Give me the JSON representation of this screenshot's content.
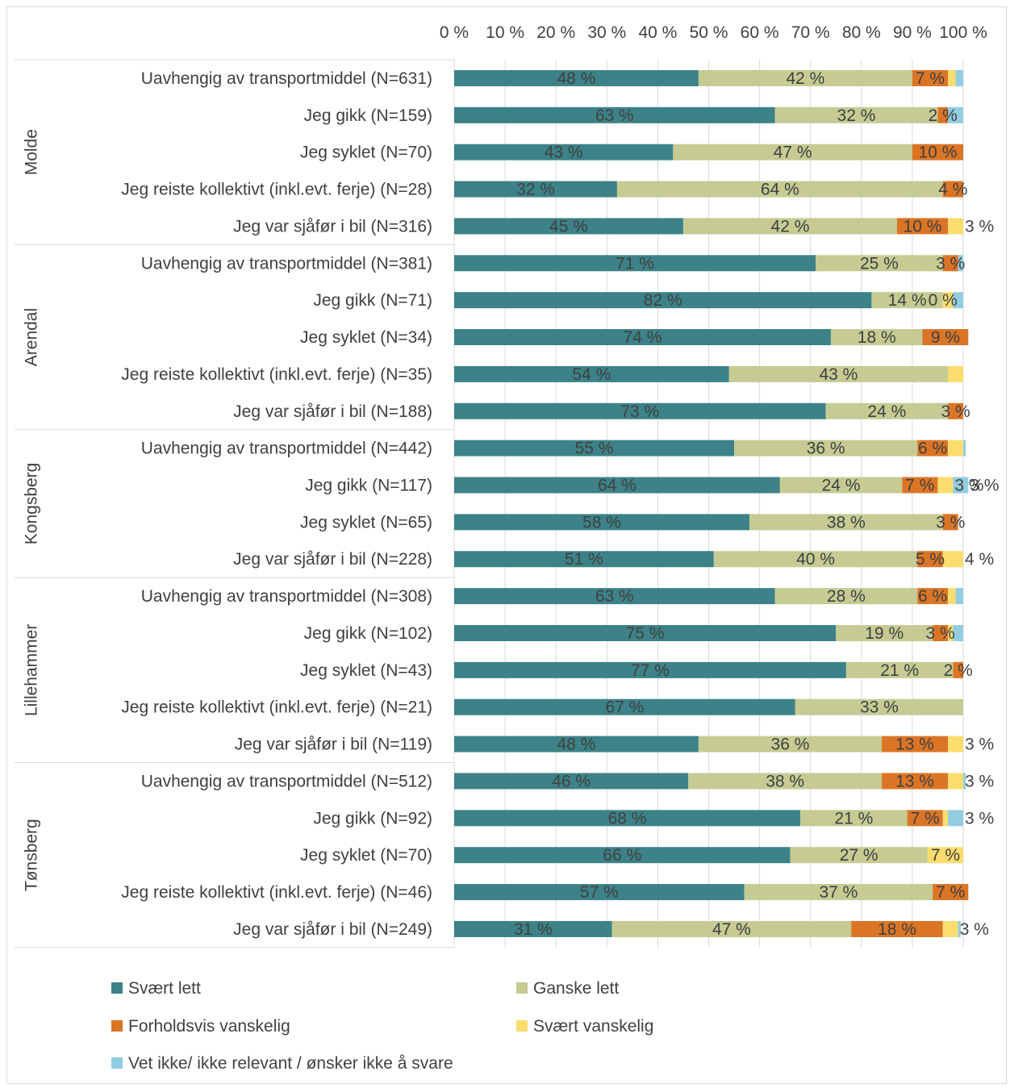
{
  "chart_data": {
    "type": "bar",
    "orientation": "horizontal",
    "stacked": true,
    "title": "",
    "xlabel": "",
    "ylabel": "",
    "xlim": [
      0,
      100
    ],
    "x_ticks": [
      "0 %",
      "10 %",
      "20 %",
      "30 %",
      "40 %",
      "50 %",
      "60 %",
      "70 %",
      "80 %",
      "90 %",
      "100 %"
    ],
    "x_axis_position": "top",
    "grid": true,
    "legend_position": "bottom",
    "series": [
      {
        "name": "Svært lett",
        "color": "#3c8288"
      },
      {
        "name": "Ganske lett",
        "color": "#c5cb93"
      },
      {
        "name": "Forholdsvis vanskelig",
        "color": "#db7526"
      },
      {
        "name": "Svært vanskelig",
        "color": "#fbdd6f"
      },
      {
        "name": "Vet ikke/ ikke relevant / ønsker ikke å svare",
        "color": "#92cde2"
      }
    ],
    "groups": [
      {
        "name": "Molde",
        "rows": [
          {
            "label": "Uavhengig av transportmiddel  (N=631)",
            "values": [
              48,
              42,
              7,
              1.5,
              1.5
            ],
            "labels": [
              "48 %",
              "42 %",
              "7 %",
              "",
              ""
            ]
          },
          {
            "label": "Jeg gikk (N=159)",
            "values": [
              63,
              32,
              2,
              0,
              3
            ],
            "labels": [
              "63 %",
              "32 %",
              "2 %",
              "",
              ""
            ]
          },
          {
            "label": "Jeg syklet (N=70)",
            "values": [
              43,
              47,
              10,
              0,
              0
            ],
            "labels": [
              "43 %",
              "47 %",
              "10 %",
              "",
              ""
            ]
          },
          {
            "label": "Jeg reiste kollektivt (inkl.evt. ferje) (N=28)",
            "values": [
              32,
              64,
              4,
              0,
              0
            ],
            "labels": [
              "32 %",
              "64 %",
              "4 %",
              "",
              ""
            ]
          },
          {
            "label": "Jeg var sjåfør i bil (N=316)",
            "values": [
              45,
              42,
              10,
              3,
              0
            ],
            "labels": [
              "45 %",
              "42 %",
              "10 %",
              "3 %",
              ""
            ]
          }
        ]
      },
      {
        "name": "Arendal",
        "rows": [
          {
            "label": "Uavhengig av transportmiddel  (N=381)",
            "values": [
              71,
              25,
              3,
              0,
              1
            ],
            "labels": [
              "71 %",
              "25 %",
              "3 %",
              "",
              ""
            ]
          },
          {
            "label": "Jeg gikk (N=71)",
            "values": [
              82,
              14,
              0,
              2,
              2
            ],
            "labels": [
              "82 %",
              "14 %",
              "0 %",
              "",
              ""
            ]
          },
          {
            "label": "Jeg syklet (N=34)",
            "values": [
              74,
              18,
              9,
              0,
              0
            ],
            "labels": [
              "74 %",
              "18 %",
              "9 %",
              "",
              ""
            ]
          },
          {
            "label": "Jeg reiste kollektivt (inkl.evt. ferje) (N=35)",
            "values": [
              54,
              43,
              0,
              3,
              0
            ],
            "labels": [
              "54 %",
              "43 %",
              "",
              "",
              ""
            ]
          },
          {
            "label": "Jeg var sjåfør i bil (N=188)",
            "values": [
              73,
              24,
              3,
              0,
              0
            ],
            "labels": [
              "73 %",
              "24 %",
              "3 %",
              "",
              ""
            ]
          }
        ]
      },
      {
        "name": "Kongsberg",
        "rows": [
          {
            "label": "Uavhengig av transportmiddel (N=442)",
            "values": [
              55,
              36,
              6,
              3,
              0.5
            ],
            "labels": [
              "55 %",
              "36 %",
              "6 %",
              "",
              ""
            ]
          },
          {
            "label": "Jeg gikk (N=117)",
            "values": [
              64,
              24,
              7,
              3,
              3
            ],
            "labels": [
              "64 %",
              "24 %",
              "7 %",
              "3 %",
              "3 %"
            ]
          },
          {
            "label": "Jeg syklet (N=65)",
            "values": [
              58,
              38,
              3,
              0,
              0
            ],
            "labels": [
              "58 %",
              "38 %",
              "3 %",
              "",
              ""
            ]
          },
          {
            "label": "Jeg var sjåfør i bil (N=228)",
            "values": [
              51,
              40,
              5,
              4,
              0
            ],
            "labels": [
              "51 %",
              "40 %",
              "5 %",
              "4 %",
              ""
            ]
          }
        ]
      },
      {
        "name": "Lillehammer",
        "rows": [
          {
            "label": "Uavhengig av transportmiddel (N=308)",
            "values": [
              63,
              28,
              6,
              1.5,
              1.5
            ],
            "labels": [
              "63 %",
              "28 %",
              "6 %",
              "",
              ""
            ]
          },
          {
            "label": "Jeg gikk (N=102)",
            "values": [
              75,
              19,
              3,
              1,
              2
            ],
            "labels": [
              "75 %",
              "19 %",
              "3 %",
              "",
              ""
            ]
          },
          {
            "label": "Jeg syklet (N=43)",
            "values": [
              77,
              21,
              2,
              0,
              0
            ],
            "labels": [
              "77 %",
              "21 %",
              "2 %",
              "",
              ""
            ]
          },
          {
            "label": "Jeg reiste kollektivt (inkl.evt. ferje) (N=21)",
            "values": [
              67,
              33,
              0,
              0,
              0
            ],
            "labels": [
              "67 %",
              "33 %",
              "",
              "",
              ""
            ]
          },
          {
            "label": "Jeg var sjåfør i bil (N=119)",
            "values": [
              48,
              36,
              13,
              3,
              0
            ],
            "labels": [
              "48 %",
              "36 %",
              "13 %",
              "3 %",
              ""
            ]
          }
        ]
      },
      {
        "name": "Tønsberg",
        "rows": [
          {
            "label": "Uavhengig av transportmiddel (N=512)",
            "values": [
              46,
              38,
              13,
              3,
              0.5
            ],
            "labels": [
              "46 %",
              "38 %",
              "13 %",
              "3 %",
              ""
            ]
          },
          {
            "label": "Jeg gikk (N=92)",
            "values": [
              68,
              21,
              7,
              1,
              3
            ],
            "labels": [
              "68 %",
              "21 %",
              "7 %",
              "",
              "3 %"
            ]
          },
          {
            "label": "Jeg syklet (N=70)",
            "values": [
              66,
              27,
              0,
              7,
              0
            ],
            "labels": [
              "66 %",
              "27 %",
              "",
              "7 %",
              ""
            ]
          },
          {
            "label": "Jeg reiste kollektivt (inkl.evt. ferje) (N=46)",
            "values": [
              57,
              37,
              7,
              0,
              0
            ],
            "labels": [
              "57 %",
              "37 %",
              "7 %",
              "",
              ""
            ]
          },
          {
            "label": "Jeg var sjåfør i bil (N=249)",
            "values": [
              31,
              47,
              18,
              3,
              0.5
            ],
            "labels": [
              "31 %",
              "47 %",
              "18 %",
              "3 %",
              ""
            ]
          }
        ]
      }
    ]
  }
}
